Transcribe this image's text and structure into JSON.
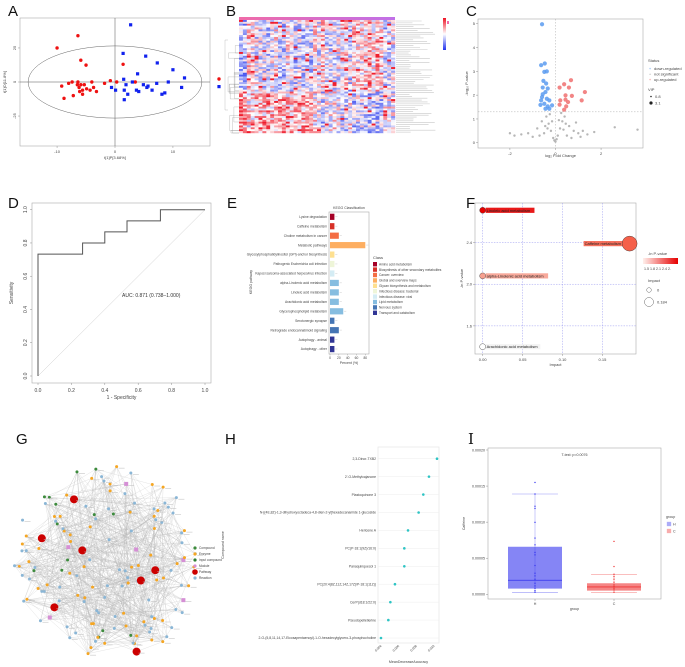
{
  "figure": {
    "panel_labels": [
      "A",
      "B",
      "C",
      "D",
      "E",
      "F",
      "G",
      "H",
      "I"
    ]
  },
  "chart_data": [
    {
      "panel": "A",
      "type": "scatter",
      "xlabel": "t[1]P[3.68%]",
      "ylabel": "t[1]O[11.8%]",
      "xlim": [
        -16.4,
        16.4
      ],
      "ylim": [
        -47,
        47
      ],
      "xticks": [
        -10,
        0,
        10
      ],
      "xtick_labels": [
        "-10",
        "0",
        "10"
      ],
      "yticks": [
        -25,
        0,
        25
      ],
      "ytick_labels": [
        "-25",
        "0",
        "25"
      ],
      "ellipse": {
        "rx": 15,
        "ry": 26.5
      },
      "series": [
        {
          "name": "group 1",
          "color": "#ee1111",
          "marker": "circle",
          "points": [
            [
              -10,
              25
            ],
            [
              -6.4,
              34
            ],
            [
              -5.9,
              16
            ],
            [
              -5,
              12.4
            ],
            [
              -9.2,
              -3
            ],
            [
              -8.8,
              -12
            ],
            [
              -8,
              -1
            ],
            [
              -7.4,
              0
            ],
            [
              -7.2,
              -10
            ],
            [
              -6.4,
              0
            ],
            [
              -6.2,
              -4
            ],
            [
              -5.9,
              -2
            ],
            [
              -5.6,
              -6
            ],
            [
              -5.3,
              -2
            ],
            [
              -4.9,
              -5
            ],
            [
              -4.3,
              -6
            ],
            [
              -4,
              0
            ],
            [
              -3.7,
              -4
            ],
            [
              -3.2,
              -7
            ],
            [
              -1.8,
              -1
            ],
            [
              -0.8,
              1
            ],
            [
              0.3,
              0
            ],
            [
              1.4,
              13
            ],
            [
              3.5,
              0
            ],
            [
              -6.5,
              -2
            ],
            [
              -5.6,
              -9
            ],
            [
              -6.1,
              -7
            ]
          ]
        },
        {
          "name": "group 2",
          "color": "#1122ee",
          "marker": "square",
          "points": [
            [
              2.7,
              42
            ],
            [
              1.4,
              21
            ],
            [
              5.3,
              19
            ],
            [
              7.3,
              14
            ],
            [
              10,
              9
            ],
            [
              3.9,
              6
            ],
            [
              12,
              3
            ],
            [
              1.5,
              2
            ],
            [
              3,
              0
            ],
            [
              1.9,
              -2
            ],
            [
              -0.6,
              -4
            ],
            [
              0.1,
              -6
            ],
            [
              1.6,
              -6
            ],
            [
              2.2,
              -9
            ],
            [
              1.6,
              -13
            ],
            [
              3.7,
              -6
            ],
            [
              4.1,
              -7
            ],
            [
              4.9,
              -2
            ],
            [
              5.5,
              -4
            ],
            [
              5.7,
              -3
            ],
            [
              6.4,
              -6
            ],
            [
              7.2,
              -1
            ],
            [
              8.6,
              -8
            ],
            [
              8.1,
              -9
            ],
            [
              9.2,
              0
            ],
            [
              11.5,
              -4
            ]
          ]
        }
      ]
    },
    {
      "panel": "B",
      "type": "heatmap",
      "rows": 60,
      "columns": 40,
      "colors": {
        "low": "#3344ee",
        "mid": "#ffffff",
        "high": "#ee1122"
      }
    },
    {
      "panel": "C",
      "type": "scatter",
      "xlabel": "log₂ Fold Change",
      "ylabel": "-log₁₀ P-value",
      "xlim": [
        -3.4,
        3.84
      ],
      "ylim": [
        -0.22,
        5.2
      ],
      "xticks": [
        -2,
        0,
        2
      ],
      "xtick_labels": [
        "-2",
        "0",
        "2"
      ],
      "yticks": [
        0,
        1,
        2,
        3,
        4,
        5
      ],
      "ytick_labels": [
        "0",
        "1",
        "2",
        "3",
        "4",
        "5"
      ],
      "threshold_y": 1.3,
      "threshold_x": 0,
      "legend": {
        "title": "Status",
        "items": [
          "down-regulated",
          "not significant",
          "up-regulated"
        ],
        "size_title": "VIP",
        "size_items": [
          "0.8",
          "3.1"
        ]
      },
      "series": [
        {
          "name": "down-regulated",
          "color": "#5b9bf0",
          "points": [
            [
              -0.59,
              4.98
            ],
            [
              -0.63,
              3.26
            ],
            [
              -0.47,
              3.33
            ],
            [
              -0.49,
              2.98
            ],
            [
              -0.38,
              3.0
            ],
            [
              -0.53,
              2.6
            ],
            [
              -0.41,
              2.49
            ],
            [
              -0.56,
              2.32
            ],
            [
              -0.34,
              2.28
            ],
            [
              -0.44,
              2.13
            ],
            [
              -0.59,
              1.92
            ],
            [
              -0.38,
              1.85
            ],
            [
              -0.63,
              1.78
            ],
            [
              -0.27,
              1.78
            ],
            [
              -0.49,
              1.64
            ],
            [
              -0.66,
              1.59
            ],
            [
              -0.34,
              1.53
            ],
            [
              -0.15,
              1.57
            ],
            [
              -0.44,
              1.43
            ],
            [
              -0.27,
              1.43
            ],
            [
              -0.56,
              2.04
            ]
          ]
        },
        {
          "name": "not significant",
          "color": "#aaaaaa",
          "points": [
            [
              -0.4,
              1.1
            ],
            [
              -0.3,
              0.8
            ],
            [
              -0.2,
              0.5
            ],
            [
              -0.1,
              0.2
            ],
            [
              0,
              0.05
            ],
            [
              0.1,
              0.3
            ],
            [
              0.2,
              0.6
            ],
            [
              0.3,
              0.9
            ],
            [
              0.4,
              1.1
            ],
            [
              -0.6,
              0.9
            ],
            [
              -0.8,
              0.6
            ],
            [
              -1.2,
              0.4
            ],
            [
              -1.5,
              0.35
            ],
            [
              -1.8,
              0.3
            ],
            [
              -2.0,
              0.4
            ],
            [
              0.6,
              0.7
            ],
            [
              0.8,
              0.5
            ],
            [
              1.0,
              0.4
            ],
            [
              1.2,
              0.5
            ],
            [
              1.4,
              0.35
            ],
            [
              1.7,
              0.45
            ],
            [
              2.6,
              0.65
            ],
            [
              3.6,
              0.55
            ],
            [
              -0.5,
              0.4
            ],
            [
              0.5,
              0.3
            ],
            [
              -0.25,
              1.2
            ],
            [
              0.25,
              1.25
            ],
            [
              0.9,
              0.85
            ],
            [
              -1.0,
              0.25
            ],
            [
              1.1,
              0.25
            ],
            [
              -0.35,
              0.6
            ],
            [
              0.35,
              0.55
            ],
            [
              -0.15,
              0.9
            ],
            [
              0.15,
              0.95
            ],
            [
              -0.7,
              0.3
            ],
            [
              0.7,
              0.2
            ],
            [
              -0.05,
              0.1
            ],
            [
              0.05,
              0.15
            ],
            [
              -0.45,
              0.7
            ],
            [
              0.45,
              0.8
            ]
          ]
        },
        {
          "name": "up-regulated",
          "color": "#f07070",
          "points": [
            [
              0.68,
              2.63
            ],
            [
              0.38,
              2.46
            ],
            [
              0.18,
              2.32
            ],
            [
              0.59,
              2.32
            ],
            [
              1.29,
              2.13
            ],
            [
              0.44,
              1.99
            ],
            [
              0.72,
              1.97
            ],
            [
              0.21,
              1.78
            ],
            [
              0.44,
              1.81
            ],
            [
              0.18,
              1.6
            ],
            [
              0.55,
              1.71
            ],
            [
              1.15,
              1.78
            ],
            [
              0.38,
              1.39
            ],
            [
              0.47,
              1.53
            ]
          ]
        }
      ]
    },
    {
      "panel": "D",
      "type": "line",
      "xlabel": "1 - Specificity",
      "ylabel": "Sensitivity",
      "xlim": [
        0,
        1
      ],
      "ylim": [
        0,
        1
      ],
      "xticks": [
        0,
        0.2,
        0.4,
        0.6,
        0.8,
        1
      ],
      "xtick_labels": [
        "0.0",
        "0.2",
        "0.4",
        "0.6",
        "0.8",
        "1.0"
      ],
      "yticks": [
        0,
        0.2,
        0.4,
        0.6,
        0.8,
        1
      ],
      "ytick_labels": [
        "0.0",
        "0.2",
        "0.4",
        "0.6",
        "0.8",
        "1.0"
      ],
      "annotation": "AUC: 0.871 (0.738–1.000)",
      "roc": [
        [
          0,
          0
        ],
        [
          0,
          0.733
        ],
        [
          0.267,
          0.733
        ],
        [
          0.267,
          0.8
        ],
        [
          0.4,
          0.8
        ],
        [
          0.4,
          0.867
        ],
        [
          0.533,
          0.867
        ],
        [
          0.533,
          0.933
        ],
        [
          0.733,
          0.933
        ],
        [
          0.733,
          1
        ],
        [
          1,
          1
        ]
      ]
    },
    {
      "panel": "E",
      "type": "bar",
      "title": "KEGG Classification",
      "xlabel": "Percent (%)",
      "ylabel": "KEGG pathway",
      "xlim": [
        0,
        90
      ],
      "xticks": [
        0,
        20,
        40,
        60,
        80
      ],
      "xtick_labels": [
        "0",
        "20",
        "40",
        "60",
        "80"
      ],
      "categories": [
        "Lysine degradation",
        "Caffeine metabolism",
        "Choline metabolism in cancer",
        "Metabolic pathways",
        "Glycosylphosphatidylinositol (GPI)-anchor biosynthesis",
        "Pathogenic Escherichia coli infection",
        "Kaposi sarcoma-associated herpesvirus infection",
        "alpha-Linolenic acid metabolism",
        "Linoleic acid metabolism",
        "Arachidonic acid metabolism",
        "Glycerophospholipid metabolism",
        "Serotonergic synapse",
        "Retrograde endocannabinoid signaling",
        "Autophagy - animal",
        "Autophagy - other"
      ],
      "values": [
        10,
        10,
        20,
        80,
        10,
        10,
        10,
        20,
        20,
        20,
        30,
        10,
        20,
        10,
        10
      ],
      "class_index": [
        0,
        1,
        2,
        3,
        4,
        5,
        6,
        7,
        7,
        7,
        7,
        8,
        8,
        9,
        9
      ],
      "legend_title": "Class",
      "classes": [
        "Amino acid metabolism",
        "Biosynthesis of other secondary metabolites",
        "Cancer: overview",
        "Global and overview maps",
        "Glycan biosynthesis and metabolism",
        "Infectious disease: bacterial",
        "Infectious disease: viral",
        "Lipid metabolism",
        "Nervous system",
        "Transport and catabolism"
      ],
      "class_colors": [
        "#a50026",
        "#d73027",
        "#f46d43",
        "#fdae61",
        "#fee090",
        "#eef5d8",
        "#d4ecf4",
        "#86bde0",
        "#4575b4",
        "#313695"
      ]
    },
    {
      "panel": "F",
      "type": "scatter",
      "xlabel": "Impact",
      "ylabel": "-ln P-value",
      "xlim": [
        -0.0096,
        0.192
      ],
      "ylim": [
        1.33,
        2.78
      ],
      "xticks": [
        0,
        0.05,
        0.1,
        0.15
      ],
      "xtick_labels": [
        "0.00",
        "0.05",
        "0.10",
        "0.15"
      ],
      "yticks": [
        1.6,
        2.0,
        2.4
      ],
      "ytick_labels": [
        "1.6",
        "2.0",
        "2.4"
      ],
      "pathways": [
        {
          "name": "Linoleic acid metabolism",
          "impact": 0,
          "neg_ln_p": 2.71,
          "color": "#e60000"
        },
        {
          "name": "Caffeine metabolism",
          "impact": 0.184,
          "neg_ln_p": 2.39,
          "color": "#f5604a"
        },
        {
          "name": "alpha-Linolenic acid metabolism",
          "impact": 0,
          "neg_ln_p": 2.08,
          "color": "#f7a090"
        },
        {
          "name": "Arachidonic acid metabolism",
          "impact": 0,
          "neg_ln_p": 1.4,
          "color": "#ffffff"
        }
      ],
      "legend": {
        "color_title": "-ln P-value",
        "color_ticks": "1.5 1.8 2.1 2.4 2.",
        "size_title": "Impact",
        "size_items": [
          "0",
          "0.184"
        ]
      }
    },
    {
      "panel": "G",
      "type": "network",
      "legend": [
        "Compound",
        "Enzyme",
        "Input compound",
        "Module",
        "Pathway",
        "Reaction"
      ],
      "legend_colors": [
        "#3d8b3d",
        "#f5a623",
        "#2e7d32",
        "#d58fd5",
        "#cc0000",
        "#8ab6d6"
      ]
    },
    {
      "panel": "H",
      "type": "scatter",
      "xlabel": "MeanDecreaseAccuracy",
      "ylabel": "Compound name",
      "xlim": [
        0.0039,
        0.0105
      ],
      "xticks": [
        0.004,
        0.006,
        0.008,
        0.01
      ],
      "xtick_labels": [
        "0.004",
        "0.006",
        "0.008",
        "0.010"
      ],
      "categories": [
        "2,3-Dinor-TXB2",
        "2'-O-Methylcajanone",
        "Plastoquinone 3",
        "N-[(4E,8Z)-1,3-dihydroxyoctadeca-4,8-dien-2-yl]hexadecanamide 1-glucoside",
        "Hericene A",
        "PC(P-18:1(9Z)/16:0)",
        "Panaquinquecol 1",
        "PC(20:4(8Z,11Z,14Z,17Z)/P-18:1(11Z))",
        "CerP(d18:1/22:0)",
        "Pseudopelletierine",
        "2-O-(5,8,11,14,17-Eicosapentaenoyl)-1-O-hexadecylglycero-3-phosphocholine"
      ],
      "values": [
        0.01034,
        0.00943,
        0.00879,
        0.00826,
        0.00706,
        0.00664,
        0.00664,
        0.00558,
        0.00506,
        0.00483,
        0.004
      ],
      "color": "#2ec4c4"
    },
    {
      "panel": "I",
      "type": "box",
      "title": "T-test: p=0.0076",
      "xlabel": "group",
      "ylabel": "Caffeine",
      "ylim": [
        0,
        0.0002
      ],
      "yticks": [
        0,
        5e-05,
        0.0001,
        0.00015,
        0.0002
      ],
      "ytick_labels": [
        "0.00000",
        "0.00005",
        "0.00010",
        "0.00015",
        "0.00020"
      ],
      "legend_title": "group",
      "groups": [
        {
          "name": "H",
          "color": "#3333ee",
          "whisker_low": 2.8e-06,
          "q1": 7.9e-06,
          "median": 1.95e-05,
          "q3": 6.59e-05,
          "whisker_high": 0.000139,
          "points": [
            0.000155,
            0.000139,
            0.000122,
            0.000119,
            9.97e-05,
            7.79e-05,
            6.86e-05,
            5.8e-05,
            5.47e-05,
            3.99e-05,
            2.92e-05,
            2.55e-05,
            2.09e-05,
            1.53e-05,
            1.16e-05,
            8.3e-06,
            5.1e-06,
            2.8e-06
          ]
        },
        {
          "name": "C",
          "color": "#ee3333",
          "whisker_low": 2.8e-06,
          "q1": 5.1e-06,
          "median": 1.02e-05,
          "q3": 1.53e-05,
          "whisker_high": 2.74e-05,
          "points": [
            7.33e-05,
            3.85e-05,
            2.78e-05,
            2.46e-05,
            2.09e-05,
            1.67e-05,
            1.3e-05,
            1.07e-05,
            8.3e-06,
            6e-06,
            2.8e-06
          ]
        }
      ]
    }
  ]
}
